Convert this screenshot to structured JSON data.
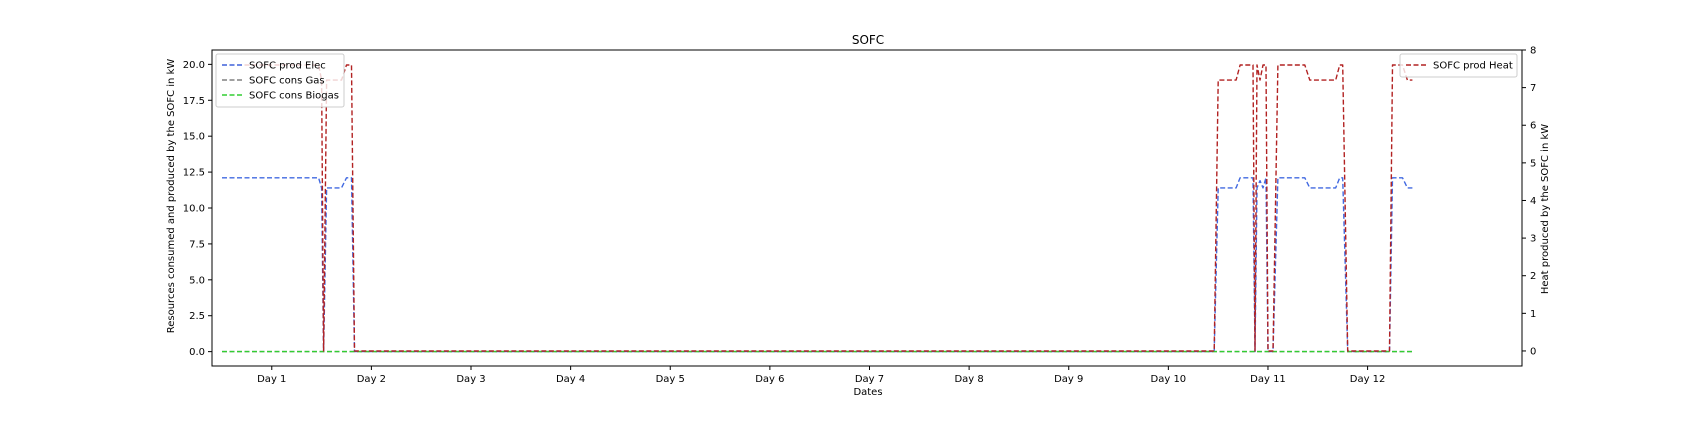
{
  "chart_data": {
    "type": "line",
    "title": "SOFC",
    "xlabel": "Dates",
    "ylabel_left": "Resources consumed and produced by the SOFC in kW",
    "ylabel_right": "Heat produced by the SOFC in kW",
    "x_unit": "day",
    "xlim": [
      0.4,
      13.55
    ],
    "ylim_left": [
      -1.0,
      21.0
    ],
    "ylim_right": [
      -0.4,
      8.0
    ],
    "x_ticks": [
      1,
      2,
      3,
      4,
      5,
      6,
      7,
      8,
      9,
      10,
      11,
      12
    ],
    "x_tick_labels": [
      "Day 1",
      "Day 2",
      "Day 3",
      "Day 4",
      "Day 5",
      "Day 6",
      "Day 7",
      "Day 8",
      "Day 9",
      "Day 10",
      "Day 11",
      "Day 12"
    ],
    "y_ticks_left": [
      0.0,
      2.5,
      5.0,
      7.5,
      10.0,
      12.5,
      15.0,
      17.5,
      20.0
    ],
    "y_tick_labels_left": [
      "0.0",
      "2.5",
      "5.0",
      "7.5",
      "10.0",
      "12.5",
      "15.0",
      "17.5",
      "20.0"
    ],
    "y_ticks_right": [
      0,
      1,
      2,
      3,
      4,
      5,
      6,
      7,
      8
    ],
    "y_tick_labels_right": [
      "0",
      "1",
      "2",
      "3",
      "4",
      "5",
      "6",
      "7",
      "8"
    ],
    "grid": false,
    "legend_left_position": "top-left",
    "legend_right_position": "top-right",
    "series": [
      {
        "name": "SOFC prod Elec",
        "axis": "left",
        "color": "#4169e1",
        "style": "dashed",
        "points": [
          [
            0.5,
            12.1
          ],
          [
            1.47,
            12.1
          ],
          [
            1.5,
            11.4
          ],
          [
            1.52,
            0.0
          ],
          [
            1.55,
            11.4
          ],
          [
            1.7,
            11.4
          ],
          [
            1.75,
            12.1
          ],
          [
            1.8,
            12.1
          ],
          [
            1.83,
            0.0
          ],
          [
            10.46,
            0.0
          ],
          [
            10.5,
            11.4
          ],
          [
            10.68,
            11.4
          ],
          [
            10.72,
            12.1
          ],
          [
            10.85,
            12.1
          ],
          [
            10.87,
            0.0
          ],
          [
            10.89,
            11.4
          ],
          [
            10.92,
            11.9
          ],
          [
            10.95,
            11.4
          ],
          [
            10.98,
            12.1
          ],
          [
            11.0,
            0.0
          ],
          [
            11.05,
            0.0
          ],
          [
            11.1,
            12.1
          ],
          [
            11.37,
            12.1
          ],
          [
            11.42,
            11.4
          ],
          [
            11.68,
            11.4
          ],
          [
            11.72,
            12.1
          ],
          [
            11.75,
            12.1
          ],
          [
            11.8,
            0.0
          ],
          [
            12.22,
            0.0
          ],
          [
            12.25,
            12.1
          ],
          [
            12.35,
            12.1
          ],
          [
            12.4,
            11.4
          ],
          [
            12.45,
            11.4
          ]
        ]
      },
      {
        "name": "SOFC cons Gas",
        "axis": "left",
        "color": "#808080",
        "style": "dashed",
        "points": [
          [
            0.5,
            0.0
          ],
          [
            12.45,
            0.0
          ]
        ]
      },
      {
        "name": "SOFC cons Biogas",
        "axis": "left",
        "color": "#32cd32",
        "style": "dashed",
        "points": [
          [
            0.5,
            0.0
          ],
          [
            12.45,
            0.0
          ]
        ]
      },
      {
        "name": "SOFC prod Heat",
        "axis": "right",
        "color": "#b22222",
        "style": "dashed",
        "points": [
          [
            0.5,
            7.6
          ],
          [
            1.47,
            7.6
          ],
          [
            1.5,
            7.2
          ],
          [
            1.52,
            0.0
          ],
          [
            1.55,
            7.2
          ],
          [
            1.7,
            7.2
          ],
          [
            1.75,
            7.6
          ],
          [
            1.8,
            7.6
          ],
          [
            1.83,
            0.0
          ],
          [
            10.46,
            0.0
          ],
          [
            10.5,
            7.2
          ],
          [
            10.68,
            7.2
          ],
          [
            10.72,
            7.6
          ],
          [
            10.85,
            7.6
          ],
          [
            10.87,
            0.0
          ],
          [
            10.89,
            7.6
          ],
          [
            10.92,
            7.2
          ],
          [
            10.95,
            7.6
          ],
          [
            10.98,
            7.6
          ],
          [
            11.0,
            0.0
          ],
          [
            11.05,
            0.0
          ],
          [
            11.1,
            7.6
          ],
          [
            11.37,
            7.6
          ],
          [
            11.42,
            7.2
          ],
          [
            11.68,
            7.2
          ],
          [
            11.72,
            7.6
          ],
          [
            11.75,
            7.6
          ],
          [
            11.8,
            0.0
          ],
          [
            12.22,
            0.0
          ],
          [
            12.25,
            7.6
          ],
          [
            12.35,
            7.6
          ],
          [
            12.4,
            7.2
          ],
          [
            12.45,
            7.2
          ]
        ]
      }
    ],
    "legend_left": [
      "SOFC prod Elec",
      "SOFC cons Gas",
      "SOFC cons Biogas"
    ],
    "legend_right": [
      "SOFC prod Heat"
    ]
  }
}
